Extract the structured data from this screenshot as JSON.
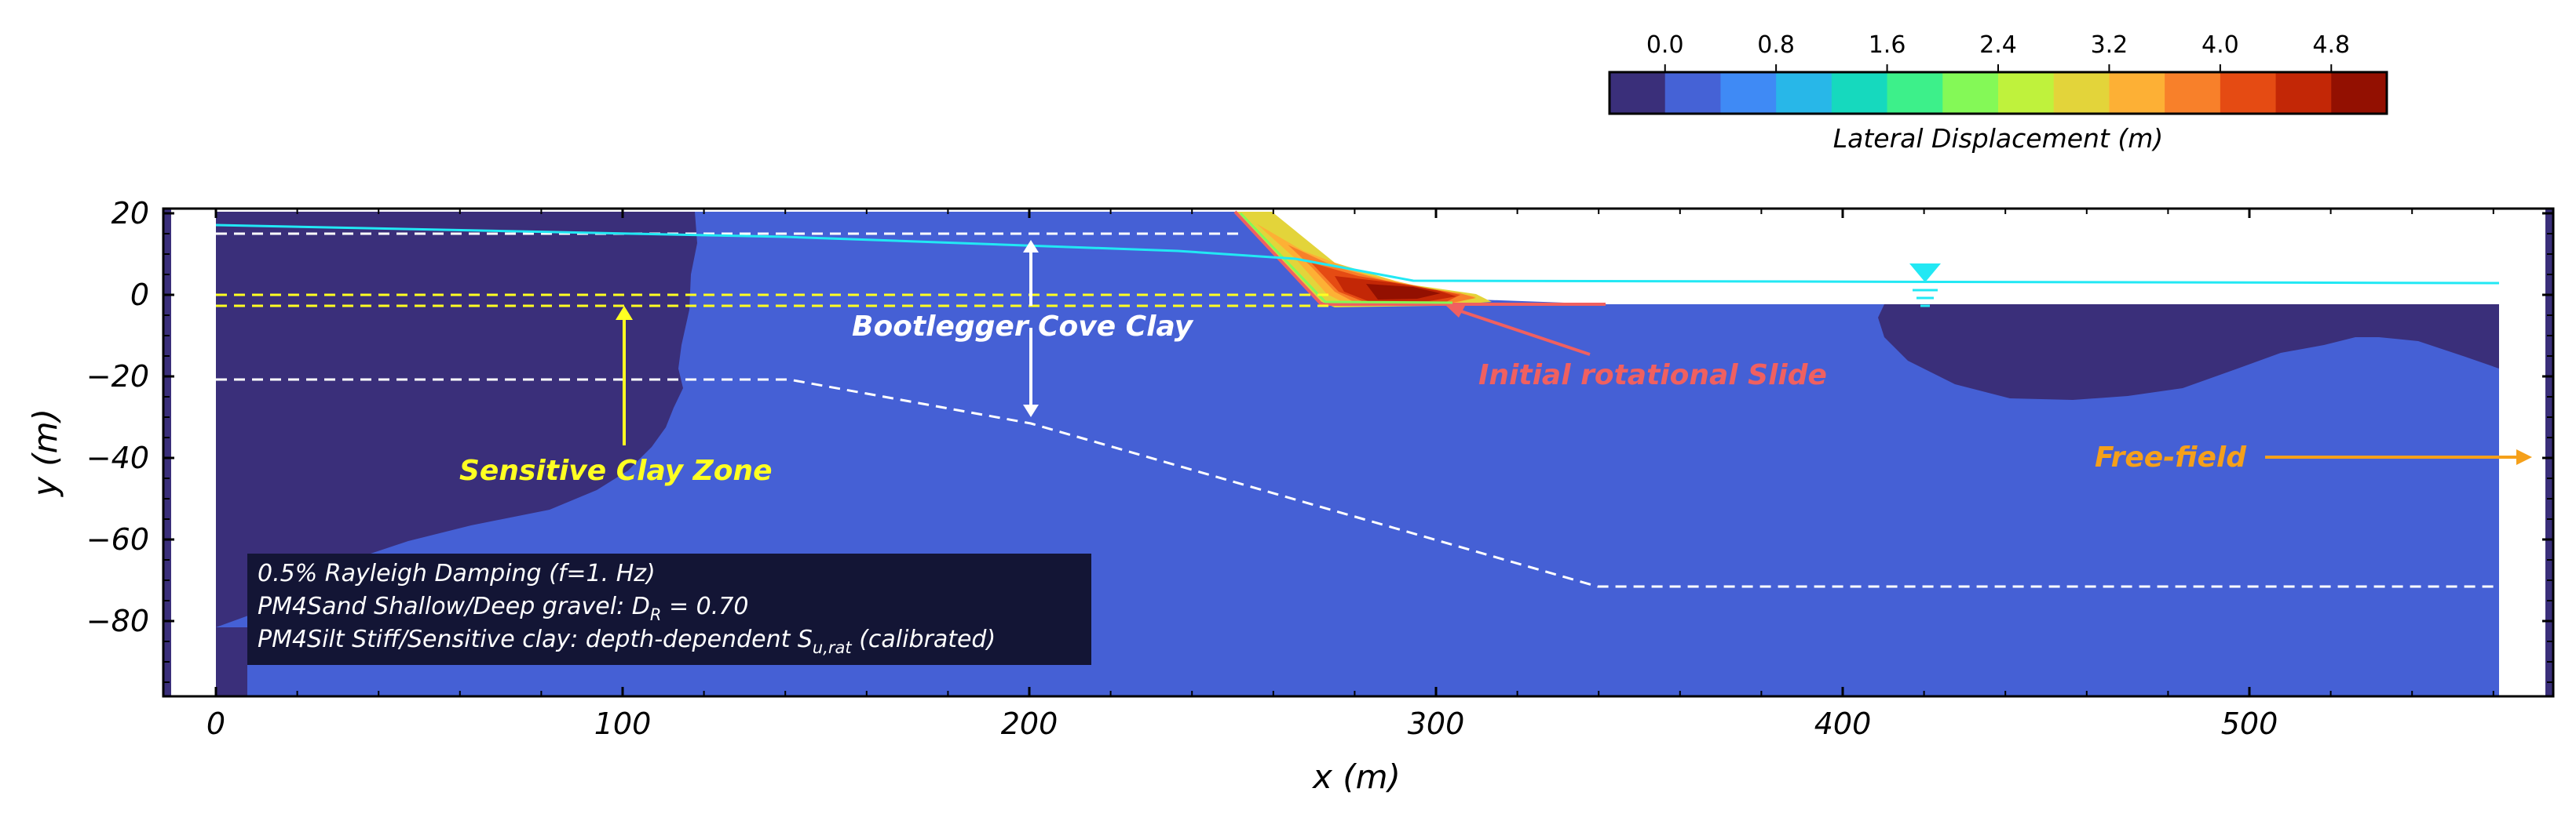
{
  "colorbar": {
    "label": "Lateral Displacement (m)",
    "tick_labels": [
      "0.0",
      "0.8",
      "1.6",
      "2.4",
      "3.2",
      "4.0",
      "4.8"
    ],
    "colors": [
      "#3a2f7a",
      "#4562d6",
      "#3f8af5",
      "#28b7e8",
      "#16d9be",
      "#3df08a",
      "#84f957",
      "#bff23c",
      "#e3d43a",
      "#fdb035",
      "#f8802a",
      "#e54b13",
      "#c32706",
      "#931001"
    ]
  },
  "axes": {
    "xlabel": "x (m)",
    "ylabel": "y (m)",
    "xticks": [
      "0",
      "100",
      "200",
      "300",
      "400",
      "500"
    ],
    "yticks": [
      "20",
      "0",
      "−20",
      "−40",
      "−60",
      "−80"
    ]
  },
  "annotations": {
    "bootlegger": "Bootlegger Cove Clay",
    "slide": "Initial rotational Slide",
    "sensitive": "Sensitive Clay Zone",
    "free_field": "Free-field"
  },
  "info_box": {
    "line1": "0.5% Rayleigh Damping (f=1. Hz)",
    "line2_prefix": "PM4Sand Shallow/Deep gravel: D",
    "line2_sub": "R",
    "line2_suffix": " = 0.70",
    "line3_prefix": "PM4Silt Stiff/Sensitive clay: depth-dependent S",
    "line3_sub": "u,rat",
    "line3_suffix": " (calibrated)"
  },
  "colors": {
    "deep_soil": "#4560d5",
    "clay_zone": "#3a2f7a",
    "info_bg": "#131535",
    "water_line": "#22e8f4",
    "yellow": "#ffff22",
    "orange": "#f5a01a",
    "slide_red": "#f06060"
  }
}
